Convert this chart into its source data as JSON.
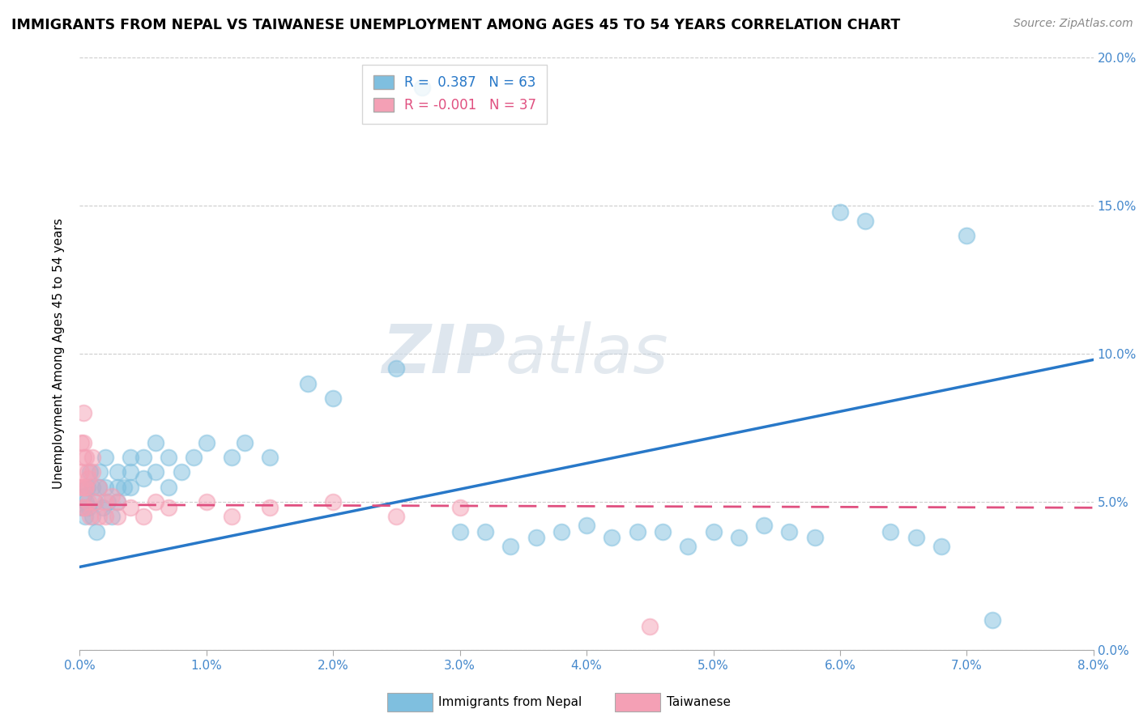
{
  "title": "IMMIGRANTS FROM NEPAL VS TAIWANESE UNEMPLOYMENT AMONG AGES 45 TO 54 YEARS CORRELATION CHART",
  "source": "Source: ZipAtlas.com",
  "ylabel": "Unemployment Among Ages 45 to 54 years",
  "legend_label1": "Immigrants from Nepal",
  "legend_label2": "Taiwanese",
  "r1": 0.387,
  "n1": 63,
  "r2": -0.001,
  "n2": 37,
  "color_blue": "#7fbfdf",
  "color_pink": "#f4a0b5",
  "color_blue_line": "#2878c8",
  "color_pink_line": "#e05080",
  "watermark_zip": "ZIP",
  "watermark_atlas": "atlas",
  "xmin": 0.0,
  "xmax": 0.08,
  "ymin": 0.0,
  "ymax": 0.2,
  "blue_x": [
    0.0002,
    0.0003,
    0.0004,
    0.0005,
    0.0006,
    0.0007,
    0.0008,
    0.001,
    0.001,
    0.0012,
    0.0013,
    0.0015,
    0.0016,
    0.0018,
    0.002,
    0.002,
    0.0022,
    0.0025,
    0.003,
    0.003,
    0.003,
    0.0035,
    0.004,
    0.004,
    0.004,
    0.005,
    0.005,
    0.006,
    0.006,
    0.007,
    0.007,
    0.008,
    0.009,
    0.01,
    0.012,
    0.013,
    0.015,
    0.018,
    0.02,
    0.025,
    0.027,
    0.03,
    0.032,
    0.034,
    0.036,
    0.038,
    0.04,
    0.042,
    0.044,
    0.046,
    0.048,
    0.05,
    0.052,
    0.054,
    0.056,
    0.058,
    0.06,
    0.062,
    0.064,
    0.066,
    0.068,
    0.07,
    0.072
  ],
  "blue_y": [
    0.048,
    0.052,
    0.045,
    0.05,
    0.055,
    0.048,
    0.06,
    0.045,
    0.055,
    0.05,
    0.04,
    0.055,
    0.06,
    0.048,
    0.055,
    0.065,
    0.05,
    0.045,
    0.055,
    0.05,
    0.06,
    0.055,
    0.065,
    0.055,
    0.06,
    0.058,
    0.065,
    0.06,
    0.07,
    0.065,
    0.055,
    0.06,
    0.065,
    0.07,
    0.065,
    0.07,
    0.065,
    0.09,
    0.085,
    0.095,
    0.19,
    0.04,
    0.04,
    0.035,
    0.038,
    0.04,
    0.042,
    0.038,
    0.04,
    0.04,
    0.035,
    0.04,
    0.038,
    0.042,
    0.04,
    0.038,
    0.148,
    0.145,
    0.04,
    0.038,
    0.035,
    0.14,
    0.01
  ],
  "pink_x": [
    5e-05,
    0.0001,
    0.0001,
    0.0002,
    0.0002,
    0.0003,
    0.0003,
    0.0003,
    0.0004,
    0.0004,
    0.0005,
    0.0005,
    0.0006,
    0.0007,
    0.0007,
    0.0008,
    0.001,
    0.001,
    0.0012,
    0.0015,
    0.0015,
    0.002,
    0.002,
    0.0025,
    0.003,
    0.003,
    0.004,
    0.005,
    0.006,
    0.007,
    0.01,
    0.012,
    0.015,
    0.02,
    0.025,
    0.03,
    0.045
  ],
  "pink_y": [
    0.055,
    0.06,
    0.07,
    0.048,
    0.055,
    0.065,
    0.07,
    0.08,
    0.048,
    0.055,
    0.055,
    0.065,
    0.06,
    0.05,
    0.058,
    0.045,
    0.06,
    0.065,
    0.05,
    0.045,
    0.055,
    0.045,
    0.05,
    0.052,
    0.045,
    0.05,
    0.048,
    0.045,
    0.05,
    0.048,
    0.05,
    0.045,
    0.048,
    0.05,
    0.045,
    0.048,
    0.008
  ],
  "blue_line_x": [
    0.0,
    0.08
  ],
  "blue_line_y": [
    0.028,
    0.098
  ],
  "pink_line_x": [
    0.0,
    0.08
  ],
  "pink_line_y": [
    0.049,
    0.048
  ]
}
